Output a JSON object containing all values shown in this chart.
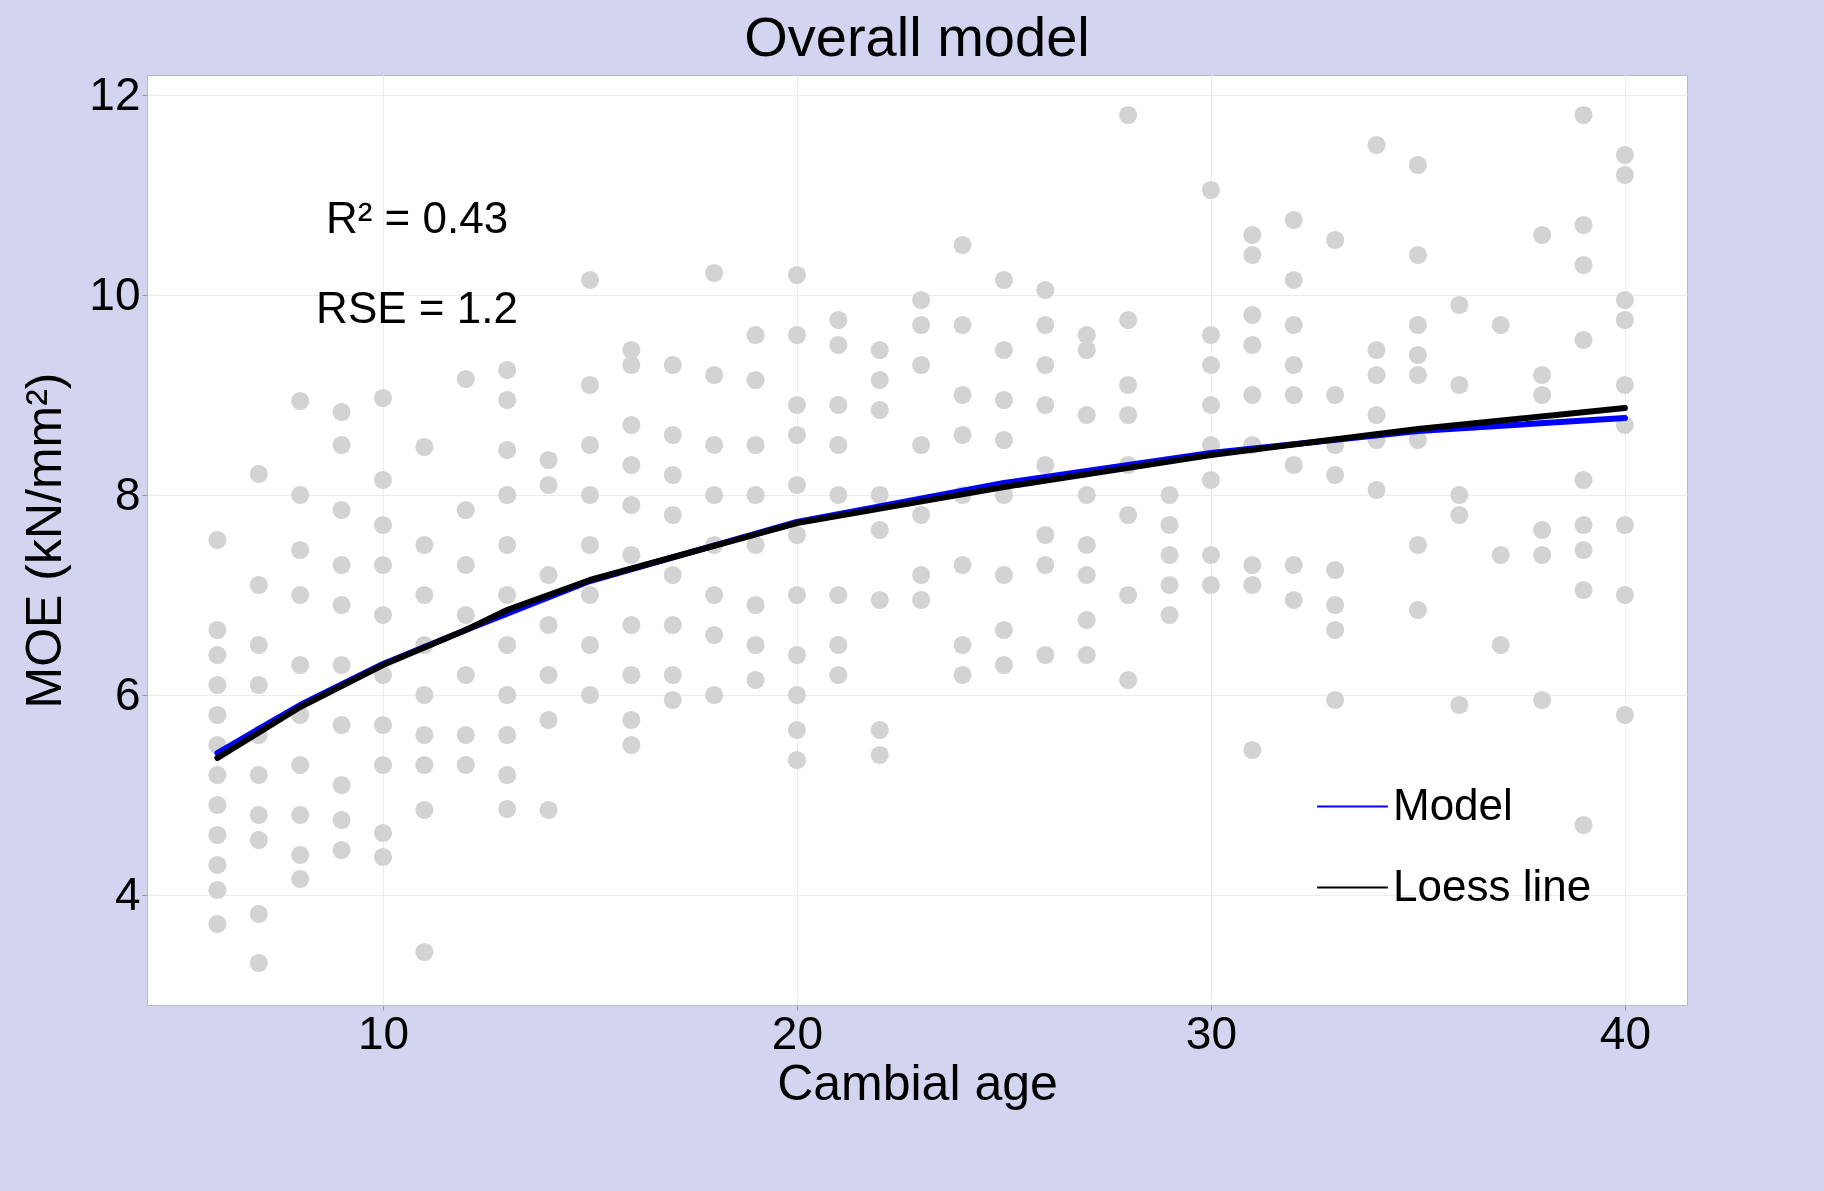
{
  "chart_data": {
    "type": "scatter",
    "title": "Overall model",
    "xlabel": "Cambial age",
    "ylabel": "MOE (kN/mm²)",
    "xlim": [
      4.3,
      41.5
    ],
    "ylim": [
      2.9,
      12.2
    ],
    "xticks": [
      10,
      20,
      30,
      40
    ],
    "yticks": [
      4,
      6,
      8,
      10,
      12
    ],
    "grid": true,
    "legend": "bottom right",
    "annotations": [
      "R² = 0.43",
      "RSE = 1.2"
    ],
    "series": [
      {
        "marker": "circle",
        "color": "#d3d3d3",
        "x": [
          6,
          6,
          6,
          6,
          6,
          6,
          6,
          6,
          6,
          6,
          6,
          6,
          7,
          7,
          7,
          7,
          7,
          7,
          7,
          7,
          7,
          7,
          8,
          8,
          8,
          8,
          8,
          8,
          8,
          8,
          8,
          8,
          9,
          9,
          9,
          9,
          9,
          9,
          9,
          9,
          9,
          9,
          10,
          10,
          10,
          10,
          10,
          10,
          10,
          10,
          10,
          10,
          11,
          11,
          11,
          11,
          11,
          11,
          11,
          11,
          11,
          12,
          12,
          12,
          12,
          12,
          12,
          12,
          13,
          13,
          13,
          13,
          13,
          13,
          13,
          13,
          13,
          13,
          13,
          14,
          14,
          14,
          14,
          14,
          14,
          14,
          15,
          15,
          15,
          15,
          15,
          15,
          15,
          15,
          16,
          16,
          16,
          16,
          16,
          16,
          16,
          16,
          16,
          16,
          17,
          17,
          17,
          17,
          17,
          17,
          17,
          17,
          18,
          18,
          18,
          18,
          18,
          18,
          18,
          18,
          19,
          19,
          19,
          19,
          19,
          19,
          19,
          19,
          20,
          20,
          20,
          20,
          20,
          20,
          20,
          20,
          20,
          20,
          20,
          21,
          21,
          21,
          21,
          21,
          21,
          21,
          21,
          22,
          22,
          22,
          22,
          22,
          22,
          22,
          22,
          23,
          23,
          23,
          23,
          23,
          23,
          23,
          24,
          24,
          24,
          24,
          24,
          24,
          24,
          24,
          25,
          25,
          25,
          25,
          25,
          25,
          25,
          25,
          26,
          26,
          26,
          26,
          26,
          26,
          26,
          26,
          27,
          27,
          27,
          27,
          27,
          27,
          27,
          27,
          28,
          28,
          28,
          28,
          28,
          28,
          28,
          28,
          29,
          29,
          29,
          29,
          29,
          30,
          30,
          30,
          30,
          30,
          30,
          30,
          30,
          31,
          31,
          31,
          31,
          31,
          31,
          31,
          31,
          31,
          32,
          32,
          32,
          32,
          32,
          32,
          32,
          32,
          33,
          33,
          33,
          33,
          33,
          33,
          33,
          33,
          34,
          34,
          34,
          34,
          34,
          34,
          35,
          35,
          35,
          35,
          35,
          35,
          35,
          35,
          36,
          36,
          36,
          36,
          36,
          37,
          37,
          37,
          38,
          38,
          38,
          38,
          38,
          38,
          39,
          39,
          39,
          39,
          39,
          39,
          39,
          39,
          39,
          40,
          40,
          40,
          40,
          40,
          40,
          40,
          40,
          40
        ],
        "values": [
          7.55,
          6.65,
          6.4,
          6.1,
          5.8,
          5.5,
          5.2,
          4.9,
          4.6,
          4.3,
          4.05,
          3.71,
          8.21,
          7.1,
          6.5,
          6.1,
          5.6,
          5.2,
          4.8,
          4.55,
          3.81,
          3.32,
          8.94,
          8.0,
          7.45,
          7.0,
          6.3,
          5.8,
          5.3,
          4.8,
          4.4,
          4.16,
          8.83,
          8.5,
          7.85,
          7.3,
          6.9,
          6.3,
          5.7,
          5.1,
          4.75,
          4.45,
          8.97,
          8.15,
          7.7,
          7.3,
          6.8,
          6.2,
          5.7,
          5.3,
          4.62,
          4.38,
          8.48,
          7.5,
          7.0,
          6.5,
          6.0,
          5.6,
          5.3,
          4.85,
          3.43,
          9.16,
          7.85,
          7.3,
          6.8,
          6.2,
          5.6,
          5.3,
          9.25,
          8.95,
          8.45,
          8.0,
          7.5,
          7.0,
          6.5,
          6.0,
          5.6,
          5.2,
          4.86,
          8.35,
          8.1,
          7.2,
          6.7,
          6.2,
          5.75,
          4.85,
          10.15,
          9.1,
          8.5,
          8.0,
          7.5,
          7.0,
          6.5,
          6.0,
          9.45,
          9.3,
          8.7,
          8.3,
          7.9,
          7.4,
          6.7,
          6.2,
          5.75,
          5.5,
          9.3,
          8.6,
          8.2,
          7.8,
          7.2,
          6.7,
          6.2,
          5.95,
          10.22,
          9.2,
          8.5,
          8.0,
          7.5,
          7.0,
          6.6,
          6.0,
          9.6,
          9.15,
          8.5,
          8.0,
          7.5,
          6.9,
          6.5,
          6.15,
          10.2,
          9.6,
          8.9,
          8.6,
          8.1,
          7.6,
          7.0,
          6.4,
          6.0,
          5.65,
          5.35,
          9.75,
          9.5,
          8.9,
          8.5,
          8.0,
          7.0,
          6.5,
          6.2,
          9.45,
          9.15,
          8.85,
          8.0,
          7.65,
          6.95,
          5.65,
          5.4,
          9.95,
          9.7,
          9.3,
          8.5,
          7.8,
          7.2,
          6.95,
          10.5,
          9.7,
          9.0,
          8.6,
          8.0,
          7.3,
          6.5,
          6.2,
          10.15,
          9.45,
          8.95,
          8.55,
          8.0,
          7.2,
          6.65,
          6.3,
          10.05,
          9.7,
          9.3,
          8.9,
          8.3,
          7.6,
          7.3,
          6.4,
          9.6,
          9.45,
          8.8,
          8.0,
          7.5,
          7.2,
          6.75,
          6.4,
          11.8,
          9.75,
          9.1,
          8.8,
          8.3,
          7.8,
          7.0,
          6.15,
          8.0,
          7.7,
          7.4,
          7.1,
          6.8,
          11.05,
          9.6,
          9.3,
          8.9,
          8.5,
          8.15,
          7.4,
          7.1,
          10.6,
          10.4,
          9.8,
          9.5,
          9.0,
          8.5,
          7.3,
          7.1,
          5.45,
          10.75,
          10.15,
          9.7,
          9.3,
          9.0,
          8.3,
          7.3,
          6.95,
          10.55,
          9.0,
          8.5,
          8.2,
          7.25,
          6.9,
          6.65,
          5.95,
          11.5,
          9.45,
          9.2,
          8.8,
          8.55,
          8.05,
          11.3,
          10.4,
          9.7,
          9.4,
          9.2,
          8.55,
          7.5,
          6.85,
          9.9,
          9.1,
          8.0,
          7.8,
          5.9,
          9.7,
          7.4,
          6.5,
          10.6,
          9.2,
          9.0,
          7.65,
          7.4,
          5.95,
          11.8,
          10.7,
          10.3,
          9.55,
          8.15,
          7.7,
          7.45,
          7.05,
          4.7,
          11.4,
          11.2,
          9.95,
          9.75,
          9.1,
          8.7,
          7.7,
          7.0,
          5.8
        ]
      },
      {
        "type": "line",
        "name": "Model",
        "color": "#0000ff",
        "x": [
          6,
          8,
          10,
          12,
          15,
          20,
          25,
          30,
          35,
          40
        ],
        "values": [
          5.42,
          5.9,
          6.31,
          6.65,
          7.14,
          7.73,
          8.12,
          8.42,
          8.64,
          8.77
        ]
      },
      {
        "type": "line",
        "name": "Loess line",
        "color": "#000000",
        "x": [
          6,
          8,
          10,
          12,
          13,
          15,
          20,
          25,
          30,
          35,
          40
        ],
        "values": [
          5.37,
          5.88,
          6.3,
          6.65,
          6.85,
          7.15,
          7.72,
          8.08,
          8.4,
          8.66,
          8.87
        ]
      }
    ]
  }
}
